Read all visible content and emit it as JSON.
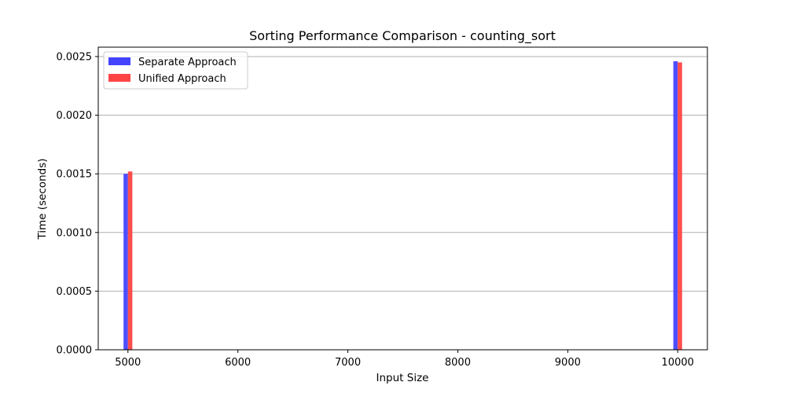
{
  "chart_data": {
    "type": "bar",
    "title": "Sorting Performance Comparison - counting_sort",
    "xlabel": "Input Size",
    "ylabel": "Time (seconds)",
    "x": [
      5000,
      10000
    ],
    "series": [
      {
        "name": "Separate Approach",
        "values": [
          0.0015,
          0.00246
        ],
        "color": "#4444ff"
      },
      {
        "name": "Unified Approach",
        "values": [
          0.00152,
          0.00245
        ],
        "color": "#ff4444"
      }
    ],
    "xlim": [
      4730,
      10270
    ],
    "ylim": [
      0,
      0.00258
    ],
    "xticks": [
      5000,
      6000,
      7000,
      8000,
      9000,
      10000
    ],
    "xtick_labels": [
      "5000",
      "6000",
      "7000",
      "8000",
      "9000",
      "10000"
    ],
    "yticks": [
      0,
      0.0005,
      0.001,
      0.0015,
      0.002,
      0.0025
    ],
    "ytick_labels": [
      "0.0000",
      "0.0005",
      "0.0010",
      "0.0015",
      "0.0020",
      "0.0025"
    ],
    "grid": "horizontal",
    "legend_position": "upper-left"
  }
}
